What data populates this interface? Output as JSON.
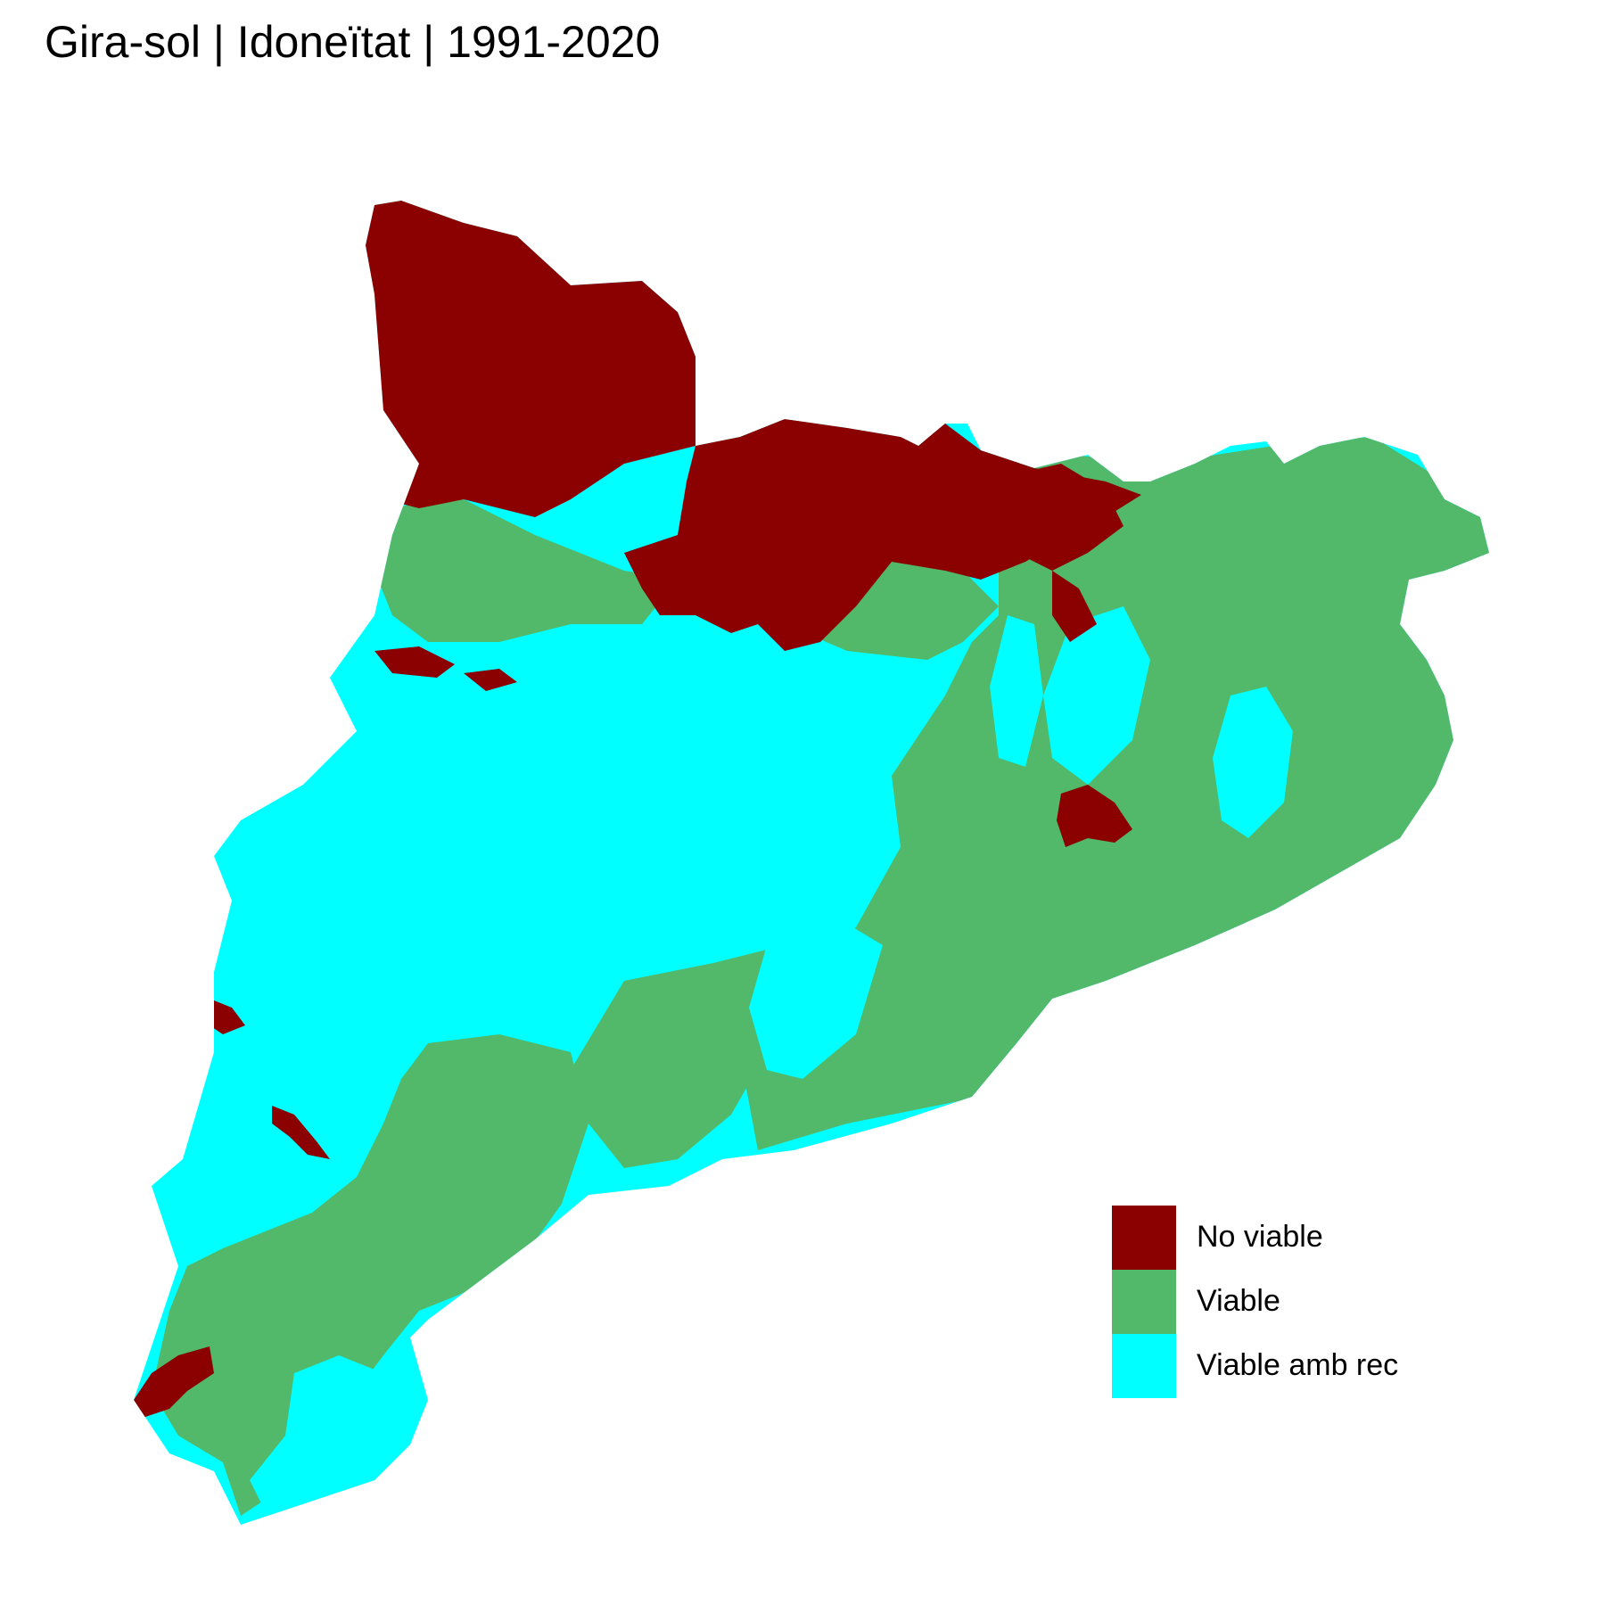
{
  "title": "Gira-sol | Idoneïtat | 1991-2020",
  "map": {
    "region": "Catalonia",
    "legend": [
      {
        "label": "No viable",
        "color": "#8b0000"
      },
      {
        "label": "Viable",
        "color": "#52b86a"
      },
      {
        "label": "Viable amb rec",
        "color": "#00ffff"
      }
    ]
  }
}
